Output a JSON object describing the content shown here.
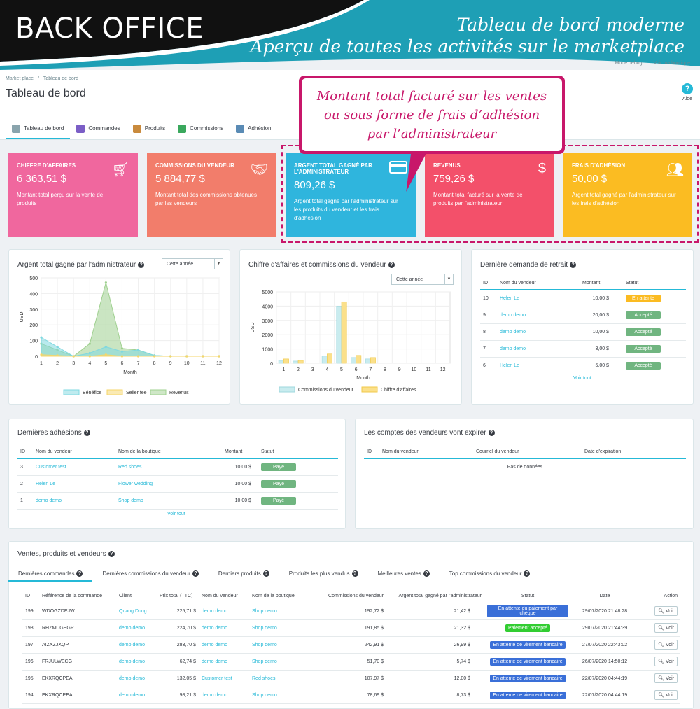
{
  "banner": {
    "left": "BACK OFFICE",
    "right_line1": "Tableau de bord moderne",
    "right_line2": "Aperçu de toutes les activités sur le marketplace"
  },
  "topbar": {
    "debug": "Mode debug",
    "shop": "Voir ma boutique"
  },
  "breadcrumb": {
    "root": "Market place",
    "sep": "/",
    "current": "Tableau de bord"
  },
  "page_title": "Tableau de bord",
  "help_label": "Aide",
  "tabs": [
    {
      "label": "Tableau de bord",
      "icon": "dashboard-icon"
    },
    {
      "label": "Commandes",
      "icon": "cart-icon"
    },
    {
      "label": "Produits",
      "icon": "box-icon"
    },
    {
      "label": "Commissions",
      "icon": "money-icon"
    },
    {
      "label": "Adhésion",
      "icon": "calendar-icon"
    }
  ],
  "callout": {
    "line1": "Montant total facturé sur les ventes",
    "line2": "ou sous forme de frais d’adhésion",
    "line3": "par l’administrateur"
  },
  "kpis": [
    {
      "title": "CHIFFRE D'AFFAIRES",
      "value": "6 363,51 $",
      "desc": "Montant total perçu sur la vente de produits",
      "color": "#f0679e",
      "icon": "cart-icon"
    },
    {
      "title": "COMMISSIONS DU VENDEUR",
      "value": "5 884,77 $",
      "desc": "Montant total des commissions obtenues par les vendeurs",
      "color": "#f27d6b",
      "icon": "handshake-icon"
    },
    {
      "title": "ARGENT TOTAL GAGNÉ PAR L'ADMINISTRATEUR",
      "value": "809,26 $",
      "desc": "Argent total gagné par l'administrateur sur les produits du vendeur et les frais d'adhésion",
      "color": "#2fb5dd",
      "icon": "credit-card-icon"
    },
    {
      "title": "REVENUS",
      "value": "759,26 $",
      "desc": "Montant total facturé sur la vente de produits par l'administrateur",
      "color": "#f3506a",
      "icon": "dollar-icon"
    },
    {
      "title": "FRAIS D'ADHÉSION",
      "value": "50,00 $",
      "desc": "Argent total gagné par l'administrateur sur les frais d'adhésion",
      "color": "#fbbc22",
      "icon": "users-icon"
    }
  ],
  "admin_chart": {
    "title": "Argent total gagné par l'administrateur",
    "select": "Cette année"
  },
  "sales_chart": {
    "title": "Chiffre d'affaires et commissions du vendeur",
    "select": "Cette année"
  },
  "chart_data": [
    {
      "type": "area",
      "ylabel": "USD",
      "xlabel": "Month",
      "x": [
        1,
        2,
        3,
        4,
        5,
        6,
        7,
        8,
        9,
        10,
        11,
        12
      ],
      "ylim": [
        0,
        500
      ],
      "yticks": [
        0,
        100,
        200,
        300,
        400,
        500
      ],
      "series": [
        {
          "name": "Bénéfice",
          "values": [
            120,
            60,
            0,
            20,
            60,
            30,
            40,
            5,
            0,
            0,
            0,
            0
          ],
          "color": "#7fd8e0"
        },
        {
          "name": "Seller fee",
          "values": [
            10,
            5,
            0,
            0,
            10,
            0,
            0,
            0,
            0,
            0,
            0,
            0
          ],
          "color": "#f5d66a"
        },
        {
          "name": "Revenus",
          "values": [
            80,
            40,
            0,
            80,
            470,
            50,
            40,
            5,
            0,
            0,
            0,
            0
          ],
          "color": "#9fd08f"
        }
      ]
    },
    {
      "type": "bar",
      "ylabel": "USD",
      "xlabel": "Month",
      "x": [
        1,
        2,
        3,
        4,
        5,
        6,
        7,
        8,
        9,
        10,
        11,
        12
      ],
      "ylim": [
        0,
        5000
      ],
      "yticks": [
        0,
        1000,
        2000,
        3000,
        4000,
        5000
      ],
      "series": [
        {
          "name": "Commissions du vendeur",
          "values": [
            200,
            150,
            0,
            500,
            4000,
            400,
            300,
            0,
            0,
            0,
            0,
            0
          ],
          "color": "#c9ecef"
        },
        {
          "name": "Chiffre d'affaires",
          "values": [
            300,
            200,
            0,
            650,
            4300,
            550,
            400,
            0,
            0,
            0,
            0,
            0
          ],
          "color": "#fbe08a"
        }
      ]
    }
  ],
  "withdraw": {
    "title": "Dernière demande de retrait",
    "headers": [
      "ID",
      "Nom du vendeur",
      "Montant",
      "Statut"
    ],
    "rows": [
      {
        "id": "10",
        "name": "Helen Le",
        "amount": "10,00 $",
        "status": "En attente",
        "color": "#fbbb22"
      },
      {
        "id": "9",
        "name": "demo demo",
        "amount": "20,00 $",
        "status": "Accepté",
        "color": "#70b580"
      },
      {
        "id": "8",
        "name": "demo demo",
        "amount": "10,00 $",
        "status": "Accepté",
        "color": "#70b580"
      },
      {
        "id": "7",
        "name": "demo demo",
        "amount": "3,00 $",
        "status": "Accepté",
        "color": "#70b580"
      },
      {
        "id": "6",
        "name": "Helen Le",
        "amount": "5,00 $",
        "status": "Accepté",
        "color": "#70b580"
      }
    ],
    "more": "Voir tout"
  },
  "adhesions": {
    "title": "Dernières adhésions",
    "headers": [
      "ID",
      "Nom du vendeur",
      "Nom de la boutique",
      "Montant",
      "Statut"
    ],
    "rows": [
      {
        "id": "3",
        "name": "Customer test",
        "shop": "Red shoes",
        "amount": "10,00 $",
        "status": "Payé"
      },
      {
        "id": "2",
        "name": "Helen Le",
        "shop": "Flower wedding",
        "amount": "10,00 $",
        "status": "Payé"
      },
      {
        "id": "1",
        "name": "demo demo",
        "shop": "Shop demo",
        "amount": "10,00 $",
        "status": "Payé"
      }
    ],
    "more": "Voir tout"
  },
  "expire": {
    "title": "Les comptes des vendeurs vont expirer",
    "headers": [
      "ID",
      "Nom du vendeur",
      "Courriel du vendeur",
      "Date d'expiration"
    ],
    "empty": "Pas de données"
  },
  "sales": {
    "title": "Ventes, produits et vendeurs",
    "tabs": [
      "Dernières commandes",
      "Dernières commissions du vendeur",
      "Derniers produits",
      "Produits les plus vendus",
      "Meilleures ventes",
      "Top commissions du vendeur"
    ],
    "headers": [
      "ID",
      "Référence de la commande",
      "Client",
      "Prix total (TTC)",
      "Nom du vendeur",
      "Nom de la boutique",
      "Commissions du vendeur",
      "Argent total gagné par l'administrateur",
      "Statut",
      "Date",
      "Action"
    ],
    "rows": [
      {
        "id": "199",
        "ref": "WDOGZDEJW",
        "client": "Quang Dung",
        "total": "225,71 $",
        "vendor": "demo demo",
        "shop": "Shop demo",
        "comm": "192,72 $",
        "admin": "21,42 $",
        "status": "En attente du paiement par chèque",
        "scolor": "#3a6fd8",
        "date": "29/07/2020 21:48:28"
      },
      {
        "id": "198",
        "ref": "RHZMUGEGP",
        "client": "demo demo",
        "total": "224,70 $",
        "vendor": "demo demo",
        "shop": "Shop demo",
        "comm": "191,85 $",
        "admin": "21,32 $",
        "status": "Paiement accepté",
        "scolor": "#32cd32",
        "date": "29/07/2020 21:44:39"
      },
      {
        "id": "197",
        "ref": "AIZXZJXQP",
        "client": "demo demo",
        "total": "283,70 $",
        "vendor": "demo demo",
        "shop": "Shop demo",
        "comm": "242,91 $",
        "admin": "26,99 $",
        "status": "En attente de virement bancaire",
        "scolor": "#3a6fd8",
        "date": "27/07/2020 22:43:02"
      },
      {
        "id": "196",
        "ref": "FRJULWECG",
        "client": "demo demo",
        "total": "62,74 $",
        "vendor": "demo demo",
        "shop": "Shop demo",
        "comm": "51,70 $",
        "admin": "5,74 $",
        "status": "En attente de virement bancaire",
        "scolor": "#3a6fd8",
        "date": "26/07/2020 14:50:12"
      },
      {
        "id": "195",
        "ref": "EKXRQCPEA",
        "client": "demo demo",
        "total": "132,05 $",
        "vendor": "Customer test",
        "shop": "Red shoes",
        "comm": "107,97 $",
        "admin": "12,00 $",
        "status": "En attente de virement bancaire",
        "scolor": "#3a6fd8",
        "date": "22/07/2020 04:44:19"
      },
      {
        "id": "194",
        "ref": "EKXRQCPEA",
        "client": "demo demo",
        "total": "98,21 $",
        "vendor": "demo demo",
        "shop": "Shop demo",
        "comm": "78,69 $",
        "admin": "8,73 $",
        "status": "En attente de virement bancaire",
        "scolor": "#3a6fd8",
        "date": "22/07/2020 04:44:19"
      }
    ],
    "action_label": "Voir"
  }
}
